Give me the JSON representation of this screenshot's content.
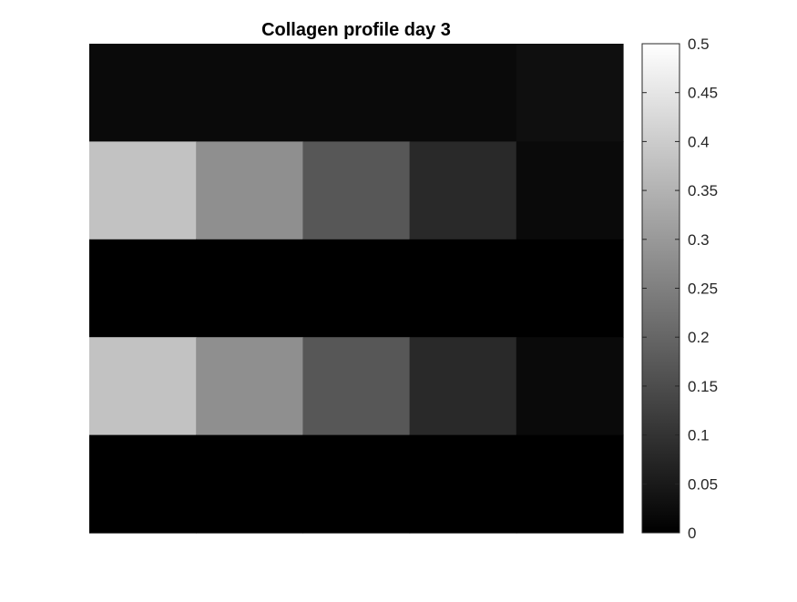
{
  "chart_data": {
    "type": "heatmap",
    "title": "Collagen profile day 3",
    "xlabel": "",
    "ylabel": "",
    "colormap": "gray",
    "clim": [
      0,
      0.5
    ],
    "values": [
      [
        0.02,
        0.02,
        0.02,
        0.02,
        0.03
      ],
      [
        0.38,
        0.28,
        0.17,
        0.08,
        0.02
      ],
      [
        0.0,
        0.0,
        0.0,
        0.0,
        0.0
      ],
      [
        0.38,
        0.28,
        0.17,
        0.08,
        0.02
      ],
      [
        0.0,
        0.0,
        0.0,
        0.0,
        0.0
      ]
    ],
    "colorbar": {
      "ticks": [
        0,
        0.05,
        0.1,
        0.15,
        0.2,
        0.25,
        0.3,
        0.35,
        0.4,
        0.45,
        0.5
      ],
      "tick_labels": [
        "0",
        "0.05",
        "0.1",
        "0.15",
        "0.2",
        "0.25",
        "0.3",
        "0.35",
        "0.4",
        "0.45",
        "0.5"
      ]
    }
  }
}
